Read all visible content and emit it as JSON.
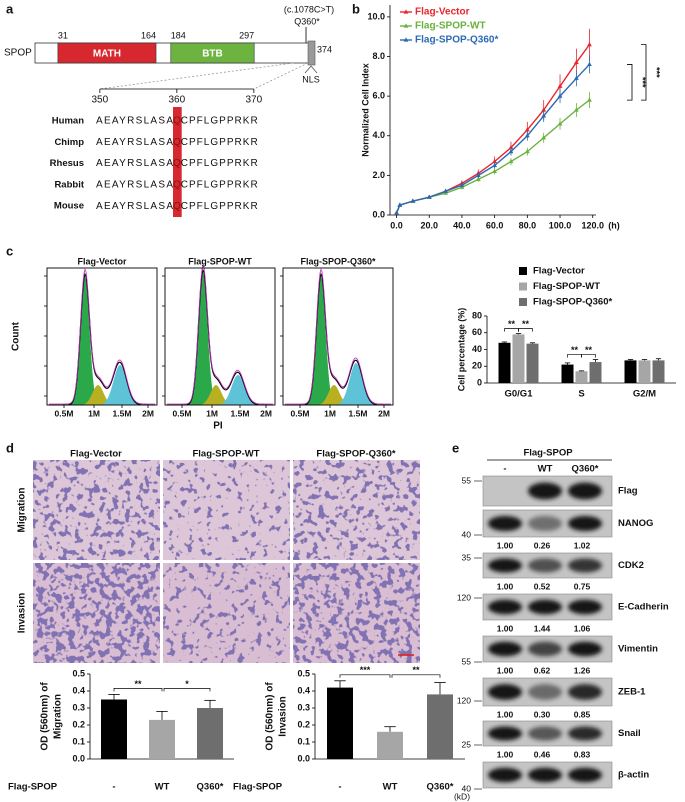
{
  "panel_labels": [
    "a",
    "b",
    "c",
    "d",
    "e"
  ],
  "protein": {
    "name": "SPOP",
    "length": 374,
    "domains": [
      {
        "name": "MATH",
        "start": 31,
        "end": 164,
        "color": "#d7282f"
      },
      {
        "name": "BTB",
        "start": 184,
        "end": 297,
        "color": "#6db33f"
      }
    ],
    "nls": "NLS",
    "mutation": {
      "note": "(c.1078C>T)",
      "label": "Q360*"
    }
  },
  "alignment": {
    "ticks": [
      350,
      360,
      370
    ],
    "highlight_color": "#d7282f",
    "rows": [
      {
        "species": "Human",
        "prefix": "AEAYRSLASA",
        "residue": "Q",
        "suffix": "CPFLGPPRKR"
      },
      {
        "species": "Chimp",
        "prefix": "AEAYRSLASA",
        "residue": "Q",
        "suffix": "CPFLGPPRKR"
      },
      {
        "species": "Rhesus",
        "prefix": "AEAYRSLASA",
        "residue": "Q",
        "suffix": "CPFLGPPRKR"
      },
      {
        "species": "Rabbit",
        "prefix": "AEAYRSLASA",
        "residue": "Q",
        "suffix": "CPFLGPPRKR"
      },
      {
        "species": "Mouse",
        "prefix": "AEAYRSLASA",
        "residue": "Q",
        "suffix": "CPFLGPPRKR"
      }
    ]
  },
  "chart_data": [
    {
      "type": "line",
      "ylabel": "Normalized Cell Index",
      "xlabel": "(h)",
      "x": [
        0,
        2,
        10,
        20,
        30,
        40,
        50,
        60,
        70,
        80,
        90,
        100,
        110,
        118
      ],
      "xlim": [
        -4,
        122
      ],
      "ylim": [
        0,
        10.6
      ],
      "xticks": [
        {
          "value": 0,
          "label": "0.0"
        },
        {
          "value": 20,
          "label": "20.0"
        },
        {
          "value": 40,
          "label": "40.0"
        },
        {
          "value": 60,
          "label": "60.0"
        },
        {
          "value": 80,
          "label": "80.0"
        },
        {
          "value": 100,
          "label": "100.0"
        },
        {
          "value": 120,
          "label": "120.0"
        }
      ],
      "yticks": [
        {
          "value": 0,
          "label": "0.0"
        },
        {
          "value": 2,
          "label": "2.0"
        },
        {
          "value": 4,
          "label": "4.0"
        },
        {
          "value": 6,
          "label": "6.0"
        },
        {
          "value": 8,
          "label": "8.0"
        },
        {
          "value": 10,
          "label": "10.0"
        }
      ],
      "legend": "upper left",
      "series": [
        {
          "name": "Flag-Vector",
          "color": "#e8262b",
          "values": [
            0.1,
            0.5,
            0.7,
            0.9,
            1.2,
            1.6,
            2.1,
            2.7,
            3.4,
            4.3,
            5.3,
            6.5,
            7.7,
            8.6
          ],
          "errors": [
            0,
            0.02,
            0.05,
            0.08,
            0.1,
            0.15,
            0.2,
            0.25,
            0.3,
            0.4,
            0.5,
            0.6,
            0.7,
            0.8
          ]
        },
        {
          "name": "Flag-SPOP-WT",
          "color": "#6ab23e",
          "values": [
            0.1,
            0.5,
            0.7,
            0.9,
            1.1,
            1.4,
            1.8,
            2.2,
            2.7,
            3.2,
            3.9,
            4.6,
            5.3,
            5.8
          ],
          "errors": [
            0,
            0.02,
            0.04,
            0.06,
            0.08,
            0.1,
            0.12,
            0.15,
            0.18,
            0.2,
            0.25,
            0.3,
            0.35,
            0.4
          ]
        },
        {
          "name": "Flag-SPOP-Q360*",
          "color": "#2a6ab3",
          "values": [
            0.1,
            0.5,
            0.7,
            0.9,
            1.2,
            1.5,
            2.0,
            2.5,
            3.2,
            4.0,
            5.0,
            6.0,
            6.9,
            7.6
          ],
          "errors": [
            0,
            0.02,
            0.04,
            0.06,
            0.08,
            0.1,
            0.13,
            0.16,
            0.2,
            0.25,
            0.3,
            0.35,
            0.4,
            0.45
          ]
        }
      ],
      "annotations": [
        "***",
        "***"
      ]
    },
    {
      "type": "bar",
      "ylabel": "Cell percentage (%)",
      "categories": [
        "G0/G1",
        "S",
        "G2/M"
      ],
      "ylim": [
        0,
        80
      ],
      "yticks": [
        0,
        20,
        40,
        60,
        80
      ],
      "legend": "upper right",
      "series": [
        {
          "name": "Flag-Vector",
          "color": "#000000",
          "values": [
            48,
            22,
            27
          ],
          "errors": [
            1,
            2,
            1
          ]
        },
        {
          "name": "Flag-SPOP-WT",
          "color": "#a6a6a6",
          "values": [
            58,
            14,
            27
          ],
          "errors": [
            1,
            0.5,
            1
          ]
        },
        {
          "name": "Flag-SPOP-Q360*",
          "color": "#6e6e6e",
          "values": [
            47,
            25,
            27
          ],
          "errors": [
            1,
            3,
            2
          ]
        }
      ],
      "annotations": [
        "**",
        "**",
        "**",
        "**"
      ]
    },
    {
      "type": "bar",
      "ylabel": [
        "OD (560nm) of",
        "Migration"
      ],
      "xlabel": "Flag-SPOP",
      "categories": [
        "-",
        "WT",
        "Q360*"
      ],
      "values": [
        0.35,
        0.23,
        0.3
      ],
      "errors": [
        0.03,
        0.05,
        0.045
      ],
      "colors": [
        "#000000",
        "#a6a6a6",
        "#6e6e6e"
      ],
      "ylim": [
        0,
        0.5
      ],
      "yticks": [
        {
          "value": 0,
          "label": "0.0"
        },
        0.1,
        0.2,
        0.3,
        0.4,
        0.5
      ],
      "annotations": [
        "**",
        "*"
      ]
    },
    {
      "type": "bar",
      "ylabel": [
        "OD (560nm) of",
        "Invasion"
      ],
      "xlabel": "Flag-SPOP",
      "categories": [
        "-",
        "WT",
        "Q360*"
      ],
      "values": [
        0.42,
        0.16,
        0.38
      ],
      "errors": [
        0.04,
        0.03,
        0.07
      ],
      "colors": [
        "#000000",
        "#a6a6a6",
        "#6e6e6e"
      ],
      "ylim": [
        0,
        0.5
      ],
      "yticks": [
        {
          "value": 0,
          "label": "0.0"
        },
        0.1,
        0.2,
        0.3,
        0.4,
        0.5
      ],
      "annotations": [
        "***",
        "**"
      ]
    }
  ],
  "flow": {
    "titles": [
      "Flag-Vector",
      "Flag-SPOP-WT",
      "Flag-SPOP-Q360*"
    ],
    "xticks": [
      "0.5M",
      "1M",
      "1.5M",
      "2M"
    ],
    "ylabel": "Count",
    "xlabel": "PI"
  },
  "transwell": {
    "columns": [
      "Flag-Vector",
      "Flag-SPOP-WT",
      "Flag-SPOP-Q360*"
    ],
    "rows": [
      "Migration",
      "Invasion"
    ]
  },
  "western": {
    "group": "Flag-SPOP",
    "lanes": [
      "-",
      "WT",
      "Q360*"
    ],
    "unit": "(kD)",
    "rows": [
      {
        "protein": "Flag",
        "marker": "55"
      },
      {
        "protein": "NANOG",
        "marker": "40",
        "quant": [
          "1.00",
          "0.26",
          "1.02"
        ]
      },
      {
        "protein": "CDK2",
        "marker": "35",
        "quant": [
          "1.00",
          "0.52",
          "0.75"
        ]
      },
      {
        "protein": "E-Cadherin",
        "marker": "120",
        "quant": [
          "1.00",
          "1.44",
          "1.06"
        ]
      },
      {
        "protein": "Vimentin",
        "marker": "55",
        "quant": [
          "1.00",
          "0.62",
          "1.26"
        ]
      },
      {
        "protein": "ZEB-1",
        "marker": "120",
        "quant": [
          "1.00",
          "0.30",
          "0.85"
        ]
      },
      {
        "protein": "Snail",
        "marker": "25",
        "quant": [
          "1.00",
          "0.46",
          "0.83"
        ]
      },
      {
        "protein": "β-actin",
        "marker": "40"
      }
    ]
  }
}
